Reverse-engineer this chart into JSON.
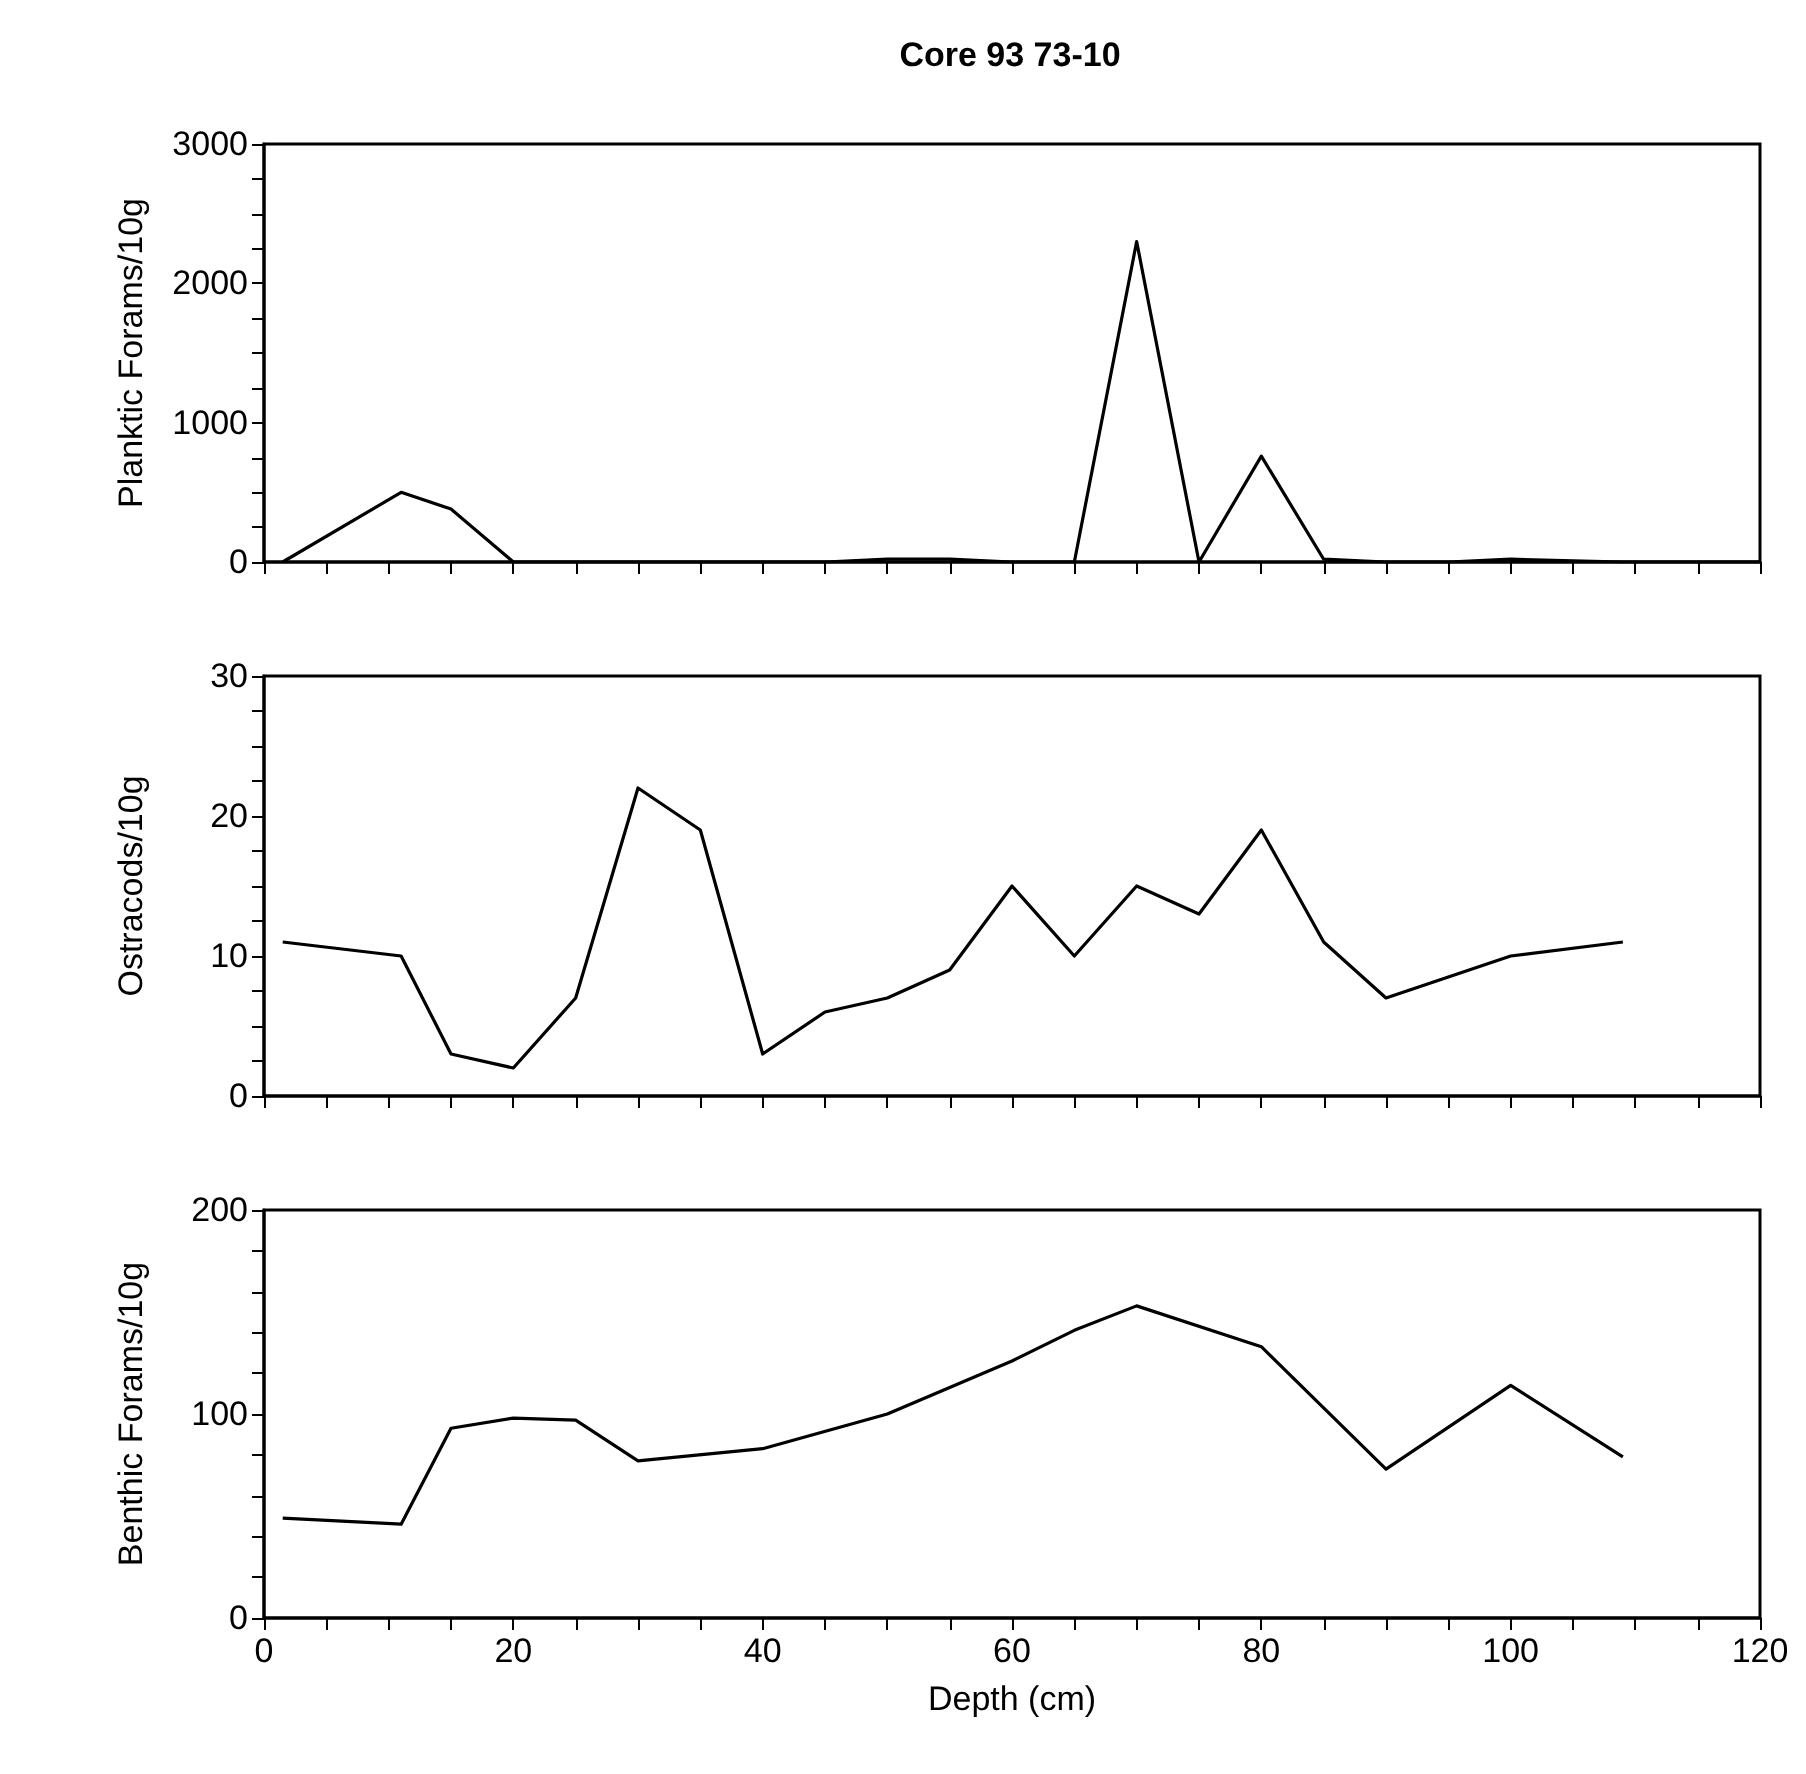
{
  "chart_data": [
    {
      "type": "line",
      "title": "Core 93 73-10",
      "ylabel": "Planktic Forams/10g",
      "x": [
        1.5,
        11,
        15,
        20,
        25,
        30,
        35,
        40,
        45,
        50,
        55,
        60,
        65,
        70,
        75,
        80,
        85,
        90,
        95,
        100,
        109,
        120
      ],
      "values": [
        0,
        500,
        380,
        0,
        0,
        0,
        0,
        0,
        0,
        20,
        20,
        0,
        0,
        2300,
        0,
        760,
        20,
        0,
        0,
        20,
        0,
        0
      ],
      "color": "#000000",
      "xlim": [
        0,
        120
      ],
      "xticks": [
        0,
        {
          "value": 5,
          "label": null
        },
        {
          "value": 10,
          "label": null
        },
        {
          "value": 15,
          "label": null
        },
        20,
        {
          "value": 25,
          "label": null
        },
        {
          "value": 30,
          "label": null
        },
        {
          "value": 35,
          "label": null
        },
        40,
        {
          "value": 45,
          "label": null
        },
        {
          "value": 50,
          "label": null
        },
        {
          "value": 55,
          "label": null
        },
        60,
        {
          "value": 65,
          "label": null
        },
        {
          "value": 70,
          "label": null
        },
        {
          "value": 75,
          "label": null
        },
        80,
        {
          "value": 85,
          "label": null
        },
        {
          "value": 90,
          "label": null
        },
        {
          "value": 95,
          "label": null
        },
        100,
        {
          "value": 105,
          "label": null
        },
        {
          "value": 110,
          "label": null
        },
        {
          "value": 115,
          "label": null
        },
        120
      ],
      "ylim": [
        0,
        3000
      ],
      "yticks": [
        0,
        {
          "value": 250,
          "label": null
        },
        {
          "value": 500,
          "label": null
        },
        {
          "value": 750,
          "label": null
        },
        1000,
        {
          "value": 1250,
          "label": null
        },
        {
          "value": 1500,
          "label": null
        },
        {
          "value": 1750,
          "label": null
        },
        2000,
        {
          "value": 2250,
          "label": null
        },
        {
          "value": 2500,
          "label": null
        },
        {
          "value": 2750,
          "label": null
        },
        3000
      ],
      "tick_labels": "y"
    },
    {
      "type": "line",
      "ylabel": "Ostracods/10g",
      "x": [
        1.5,
        11,
        15,
        20,
        25,
        30,
        35,
        40,
        45,
        50,
        55,
        60,
        65,
        70,
        75,
        80,
        85,
        90,
        95,
        100,
        109
      ],
      "values": [
        11,
        10,
        3,
        2,
        7,
        22,
        19,
        3,
        6,
        7,
        9,
        15,
        10,
        15,
        13,
        19,
        11,
        7,
        8.5,
        10,
        11
      ],
      "color": "#000000",
      "xlim": [
        0,
        120
      ],
      "xticks": [
        0,
        {
          "value": 5,
          "label": null
        },
        {
          "value": 10,
          "label": null
        },
        {
          "value": 15,
          "label": null
        },
        20,
        {
          "value": 25,
          "label": null
        },
        {
          "value": 30,
          "label": null
        },
        {
          "value": 35,
          "label": null
        },
        40,
        {
          "value": 45,
          "label": null
        },
        {
          "value": 50,
          "label": null
        },
        {
          "value": 55,
          "label": null
        },
        60,
        {
          "value": 65,
          "label": null
        },
        {
          "value": 70,
          "label": null
        },
        {
          "value": 75,
          "label": null
        },
        80,
        {
          "value": 85,
          "label": null
        },
        {
          "value": 90,
          "label": null
        },
        {
          "value": 95,
          "label": null
        },
        100,
        {
          "value": 105,
          "label": null
        },
        {
          "value": 110,
          "label": null
        },
        {
          "value": 115,
          "label": null
        },
        120
      ],
      "ylim": [
        0,
        30
      ],
      "yticks": [
        0,
        {
          "value": 2.5,
          "label": null
        },
        {
          "value": 5,
          "label": null
        },
        {
          "value": 7.5,
          "label": null
        },
        10,
        {
          "value": 12.5,
          "label": null
        },
        {
          "value": 15,
          "label": null
        },
        {
          "value": 17.5,
          "label": null
        },
        20,
        {
          "value": 22.5,
          "label": null
        },
        {
          "value": 25,
          "label": null
        },
        {
          "value": 27.5,
          "label": null
        },
        30
      ],
      "tick_labels": "y"
    },
    {
      "type": "line",
      "ylabel": "Benthic Forams/10g",
      "xlabel": "Depth (cm)",
      "x": [
        1.5,
        11,
        15,
        20,
        25,
        30,
        40,
        50,
        60,
        65,
        70,
        80,
        90,
        100,
        109
      ],
      "values": [
        49,
        46,
        93,
        98,
        97,
        77,
        83,
        100,
        126,
        141,
        153,
        133,
        73,
        114,
        79
      ],
      "color": "#000000",
      "xlim": [
        0,
        120
      ],
      "xticks": [
        0,
        {
          "value": 5,
          "label": null
        },
        {
          "value": 10,
          "label": null
        },
        {
          "value": 15,
          "label": null
        },
        20,
        {
          "value": 25,
          "label": null
        },
        {
          "value": 30,
          "label": null
        },
        {
          "value": 35,
          "label": null
        },
        40,
        {
          "value": 45,
          "label": null
        },
        {
          "value": 50,
          "label": null
        },
        {
          "value": 55,
          "label": null
        },
        60,
        {
          "value": 65,
          "label": null
        },
        {
          "value": 70,
          "label": null
        },
        {
          "value": 75,
          "label": null
        },
        80,
        {
          "value": 85,
          "label": null
        },
        {
          "value": 90,
          "label": null
        },
        {
          "value": 95,
          "label": null
        },
        100,
        {
          "value": 105,
          "label": null
        },
        {
          "value": 110,
          "label": null
        },
        {
          "value": 115,
          "label": null
        },
        120
      ],
      "ylim": [
        0,
        200
      ],
      "yticks": [
        0,
        {
          "value": 20,
          "label": null
        },
        {
          "value": 40,
          "label": null
        },
        {
          "value": 60,
          "label": null
        },
        {
          "value": 80,
          "label": null
        },
        100,
        {
          "value": 120,
          "label": null
        },
        {
          "value": 140,
          "label": null
        },
        {
          "value": 160,
          "label": null
        },
        {
          "value": 180,
          "label": null
        },
        200
      ]
    }
  ]
}
